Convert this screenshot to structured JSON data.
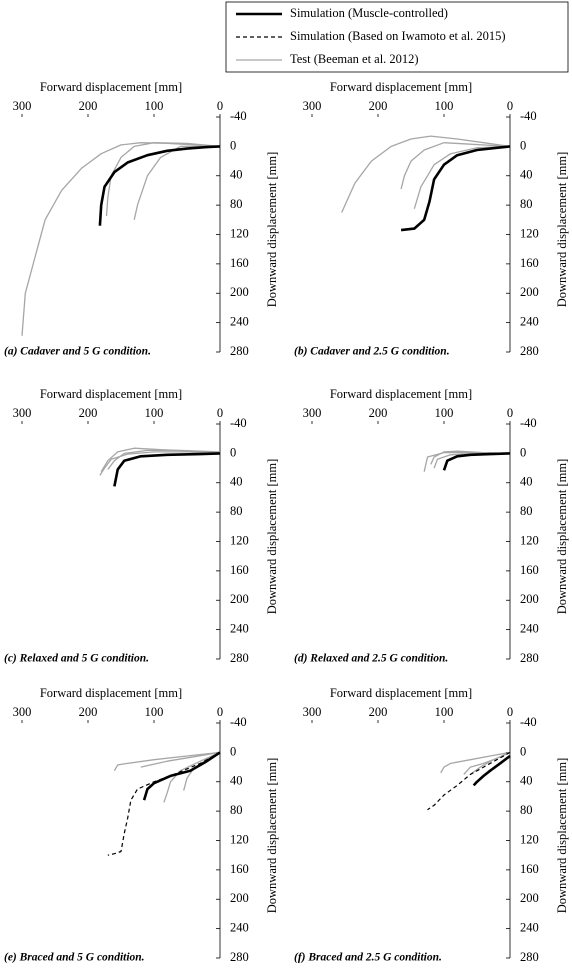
{
  "legend": [
    {
      "name": "Simulation (Muscle-controlled)",
      "color": "#000000",
      "style": "thick"
    },
    {
      "name": "Simulation (Based on Iwamoto et al. 2015)",
      "color": "#000000",
      "style": "dashed"
    },
    {
      "name": "Test (Beeman et al. 2012)",
      "color": "#a6a6a6",
      "style": "thin"
    }
  ],
  "chart_data": [
    {
      "type": "line",
      "title": "(a) Cadaver and 5 G condition.",
      "xlabel": "Forward displacement [mm]",
      "ylabel": "Downward displacement [mm]",
      "xlim": [
        300,
        0
      ],
      "ylim": [
        280,
        -40
      ],
      "xticks": [
        300,
        200,
        100,
        0
      ],
      "yticks": [
        -40,
        0,
        40,
        80,
        120,
        160,
        200,
        240,
        280
      ],
      "series": [
        {
          "color": "#a6a6a6",
          "style": "thin",
          "x": [
            0,
            40,
            80,
            120,
            150,
            180,
            210,
            240,
            265,
            280,
            295,
            300
          ],
          "values": [
            0,
            -2,
            -4,
            -5,
            -2,
            10,
            30,
            60,
            100,
            150,
            200,
            258
          ]
        },
        {
          "color": "#a6a6a6",
          "style": "thin",
          "x": [
            0,
            50,
            100,
            130,
            150,
            165,
            170,
            172
          ],
          "values": [
            0,
            -4,
            -5,
            0,
            15,
            40,
            70,
            95
          ]
        },
        {
          "color": "#a6a6a6",
          "style": "thin",
          "x": [
            0,
            60,
            90,
            110,
            125,
            130
          ],
          "values": [
            0,
            0,
            15,
            40,
            80,
            100
          ]
        },
        {
          "color": "#000000",
          "style": "thick",
          "x": [
            0,
            20,
            50,
            80,
            110,
            140,
            160,
            175,
            180,
            182
          ],
          "values": [
            0,
            1,
            3,
            6,
            12,
            22,
            35,
            55,
            80,
            108
          ]
        }
      ]
    },
    {
      "type": "line",
      "title": "(b) Cadaver and 2.5 G condition.",
      "xlabel": "Forward displacement [mm]",
      "ylabel": "Downward displacement [mm]",
      "xlim": [
        300,
        0
      ],
      "ylim": [
        280,
        -40
      ],
      "xticks": [
        300,
        200,
        100,
        0
      ],
      "yticks": [
        -40,
        0,
        40,
        80,
        120,
        160,
        200,
        240,
        280
      ],
      "series": [
        {
          "color": "#a6a6a6",
          "style": "thin",
          "x": [
            0,
            40,
            80,
            120,
            150,
            180,
            210,
            235,
            255
          ],
          "values": [
            0,
            -5,
            -10,
            -14,
            -10,
            0,
            20,
            50,
            90
          ]
        },
        {
          "color": "#a6a6a6",
          "style": "thin",
          "x": [
            0,
            50,
            90,
            115,
            125,
            135,
            140,
            145
          ],
          "values": [
            0,
            2,
            10,
            25,
            40,
            55,
            70,
            85
          ]
        },
        {
          "color": "#a6a6a6",
          "style": "thin",
          "x": [
            0,
            60,
            100,
            130,
            150,
            160,
            165
          ],
          "values": [
            0,
            -3,
            -5,
            5,
            20,
            40,
            58
          ]
        },
        {
          "color": "#000000",
          "style": "thick",
          "x": [
            0,
            20,
            50,
            80,
            100,
            115,
            122,
            130,
            145,
            165
          ],
          "values": [
            0,
            2,
            5,
            12,
            25,
            45,
            75,
            100,
            112,
            114
          ]
        }
      ]
    },
    {
      "type": "line",
      "title": "(c) Relaxed and 5 G condition.",
      "xlabel": "Forward displacement [mm]",
      "ylabel": "Downward displacement [mm]",
      "xlim": [
        300,
        0
      ],
      "ylim": [
        280,
        -40
      ],
      "xticks": [
        300,
        200,
        100,
        0
      ],
      "yticks": [
        -40,
        0,
        40,
        80,
        120,
        160,
        200,
        240,
        280
      ],
      "series": [
        {
          "color": "#a6a6a6",
          "style": "thin",
          "x": [
            0,
            40,
            90,
            130,
            155,
            170,
            180
          ],
          "values": [
            0,
            -3,
            -5,
            -7,
            -2,
            10,
            25
          ]
        },
        {
          "color": "#a6a6a6",
          "style": "thin",
          "x": [
            0,
            50,
            100,
            140,
            165,
            175,
            182
          ],
          "values": [
            0,
            -2,
            -2,
            1,
            8,
            20,
            30
          ]
        },
        {
          "color": "#a6a6a6",
          "style": "thin",
          "x": [
            0,
            60,
            110,
            145,
            160,
            170
          ],
          "values": [
            -2,
            -4,
            -4,
            0,
            10,
            22
          ]
        },
        {
          "color": "#000000",
          "style": "thick",
          "x": [
            0,
            30,
            80,
            120,
            145,
            155,
            160
          ],
          "values": [
            0,
            1,
            2,
            4,
            10,
            22,
            45
          ]
        }
      ]
    },
    {
      "type": "line",
      "title": "(d) Relaxed and 2.5 G condition.",
      "xlabel": "Forward displacement [mm]",
      "ylabel": "Downward displacement [mm]",
      "xlim": [
        300,
        0
      ],
      "ylim": [
        280,
        -40
      ],
      "xticks": [
        300,
        200,
        100,
        0
      ],
      "yticks": [
        -40,
        0,
        40,
        80,
        120,
        160,
        200,
        240,
        280
      ],
      "series": [
        {
          "color": "#a6a6a6",
          "style": "thin",
          "x": [
            0,
            40,
            80,
            100,
            115,
            120
          ],
          "values": [
            0,
            -1,
            -3,
            -2,
            5,
            15
          ]
        },
        {
          "color": "#a6a6a6",
          "style": "thin",
          "x": [
            0,
            50,
            90,
            110,
            115
          ],
          "values": [
            0,
            0,
            2,
            8,
            20
          ]
        },
        {
          "color": "#a6a6a6",
          "style": "thin",
          "x": [
            0,
            60,
            100,
            125,
            130
          ],
          "values": [
            0,
            -1,
            -1,
            5,
            25
          ]
        },
        {
          "color": "#000000",
          "style": "thick",
          "x": [
            0,
            30,
            60,
            80,
            95,
            100
          ],
          "values": [
            0,
            1,
            2,
            4,
            10,
            23
          ]
        }
      ]
    },
    {
      "type": "line",
      "title": "(e) Braced and 5 G condition.",
      "xlabel": "Forward displacement [mm]",
      "ylabel": "Downward displacement [mm]",
      "xlim": [
        300,
        0
      ],
      "ylim": [
        280,
        -40
      ],
      "xticks": [
        300,
        200,
        100,
        0
      ],
      "yticks": [
        -40,
        0,
        40,
        80,
        120,
        160,
        200,
        240,
        280
      ],
      "series": [
        {
          "color": "#a6a6a6",
          "style": "thin",
          "x": [
            0,
            50,
            100,
            140,
            155,
            160
          ],
          "values": [
            0,
            5,
            10,
            15,
            17,
            25
          ]
        },
        {
          "color": "#a6a6a6",
          "style": "thin",
          "x": [
            0,
            30,
            60,
            75,
            80,
            85
          ],
          "values": [
            0,
            12,
            25,
            40,
            55,
            68
          ]
        },
        {
          "color": "#a6a6a6",
          "style": "thin",
          "x": [
            0,
            20,
            40,
            50,
            55
          ],
          "values": [
            0,
            10,
            22,
            35,
            52
          ]
        },
        {
          "color": "#a6a6a6",
          "style": "thin",
          "x": [
            0,
            40,
            80,
            120
          ],
          "values": [
            0,
            6,
            12,
            20
          ]
        },
        {
          "color": "#000000",
          "style": "dashed",
          "x": [
            0,
            30,
            70,
            100,
            125,
            135,
            140,
            145,
            150,
            160,
            170
          ],
          "values": [
            0,
            15,
            30,
            40,
            50,
            65,
            90,
            110,
            135,
            138,
            140
          ]
        },
        {
          "color": "#000000",
          "style": "thick",
          "x": [
            0,
            20,
            45,
            75,
            100,
            110,
            115
          ],
          "values": [
            0,
            12,
            25,
            32,
            42,
            50,
            65
          ]
        }
      ]
    },
    {
      "type": "line",
      "title": "(f) Braced and 2.5 G condition.",
      "xlabel": "Forward displacement [mm]",
      "ylabel": "Downward displacement [mm]",
      "xlim": [
        300,
        0
      ],
      "ylim": [
        280,
        -40
      ],
      "xticks": [
        300,
        200,
        100,
        0
      ],
      "yticks": [
        -40,
        0,
        40,
        80,
        120,
        160,
        200,
        240,
        280
      ],
      "series": [
        {
          "color": "#a6a6a6",
          "style": "thin",
          "x": [
            0,
            30,
            60,
            90,
            100,
            105
          ],
          "values": [
            0,
            5,
            10,
            15,
            20,
            28
          ]
        },
        {
          "color": "#a6a6a6",
          "style": "thin",
          "x": [
            0,
            20,
            40,
            60,
            70
          ],
          "values": [
            0,
            8,
            15,
            20,
            30
          ]
        },
        {
          "color": "#a6a6a6",
          "style": "thin",
          "x": [
            0,
            25,
            45,
            60
          ],
          "values": [
            0,
            10,
            20,
            30
          ]
        },
        {
          "color": "#000000",
          "style": "dashed",
          "x": [
            0,
            20,
            40,
            60,
            80,
            100,
            115,
            125
          ],
          "values": [
            0,
            10,
            20,
            30,
            45,
            58,
            72,
            78
          ]
        },
        {
          "color": "#000000",
          "style": "thick",
          "x": [
            0,
            15,
            30,
            40,
            50,
            55
          ],
          "values": [
            5,
            15,
            25,
            32,
            40,
            45
          ]
        }
      ]
    }
  ]
}
